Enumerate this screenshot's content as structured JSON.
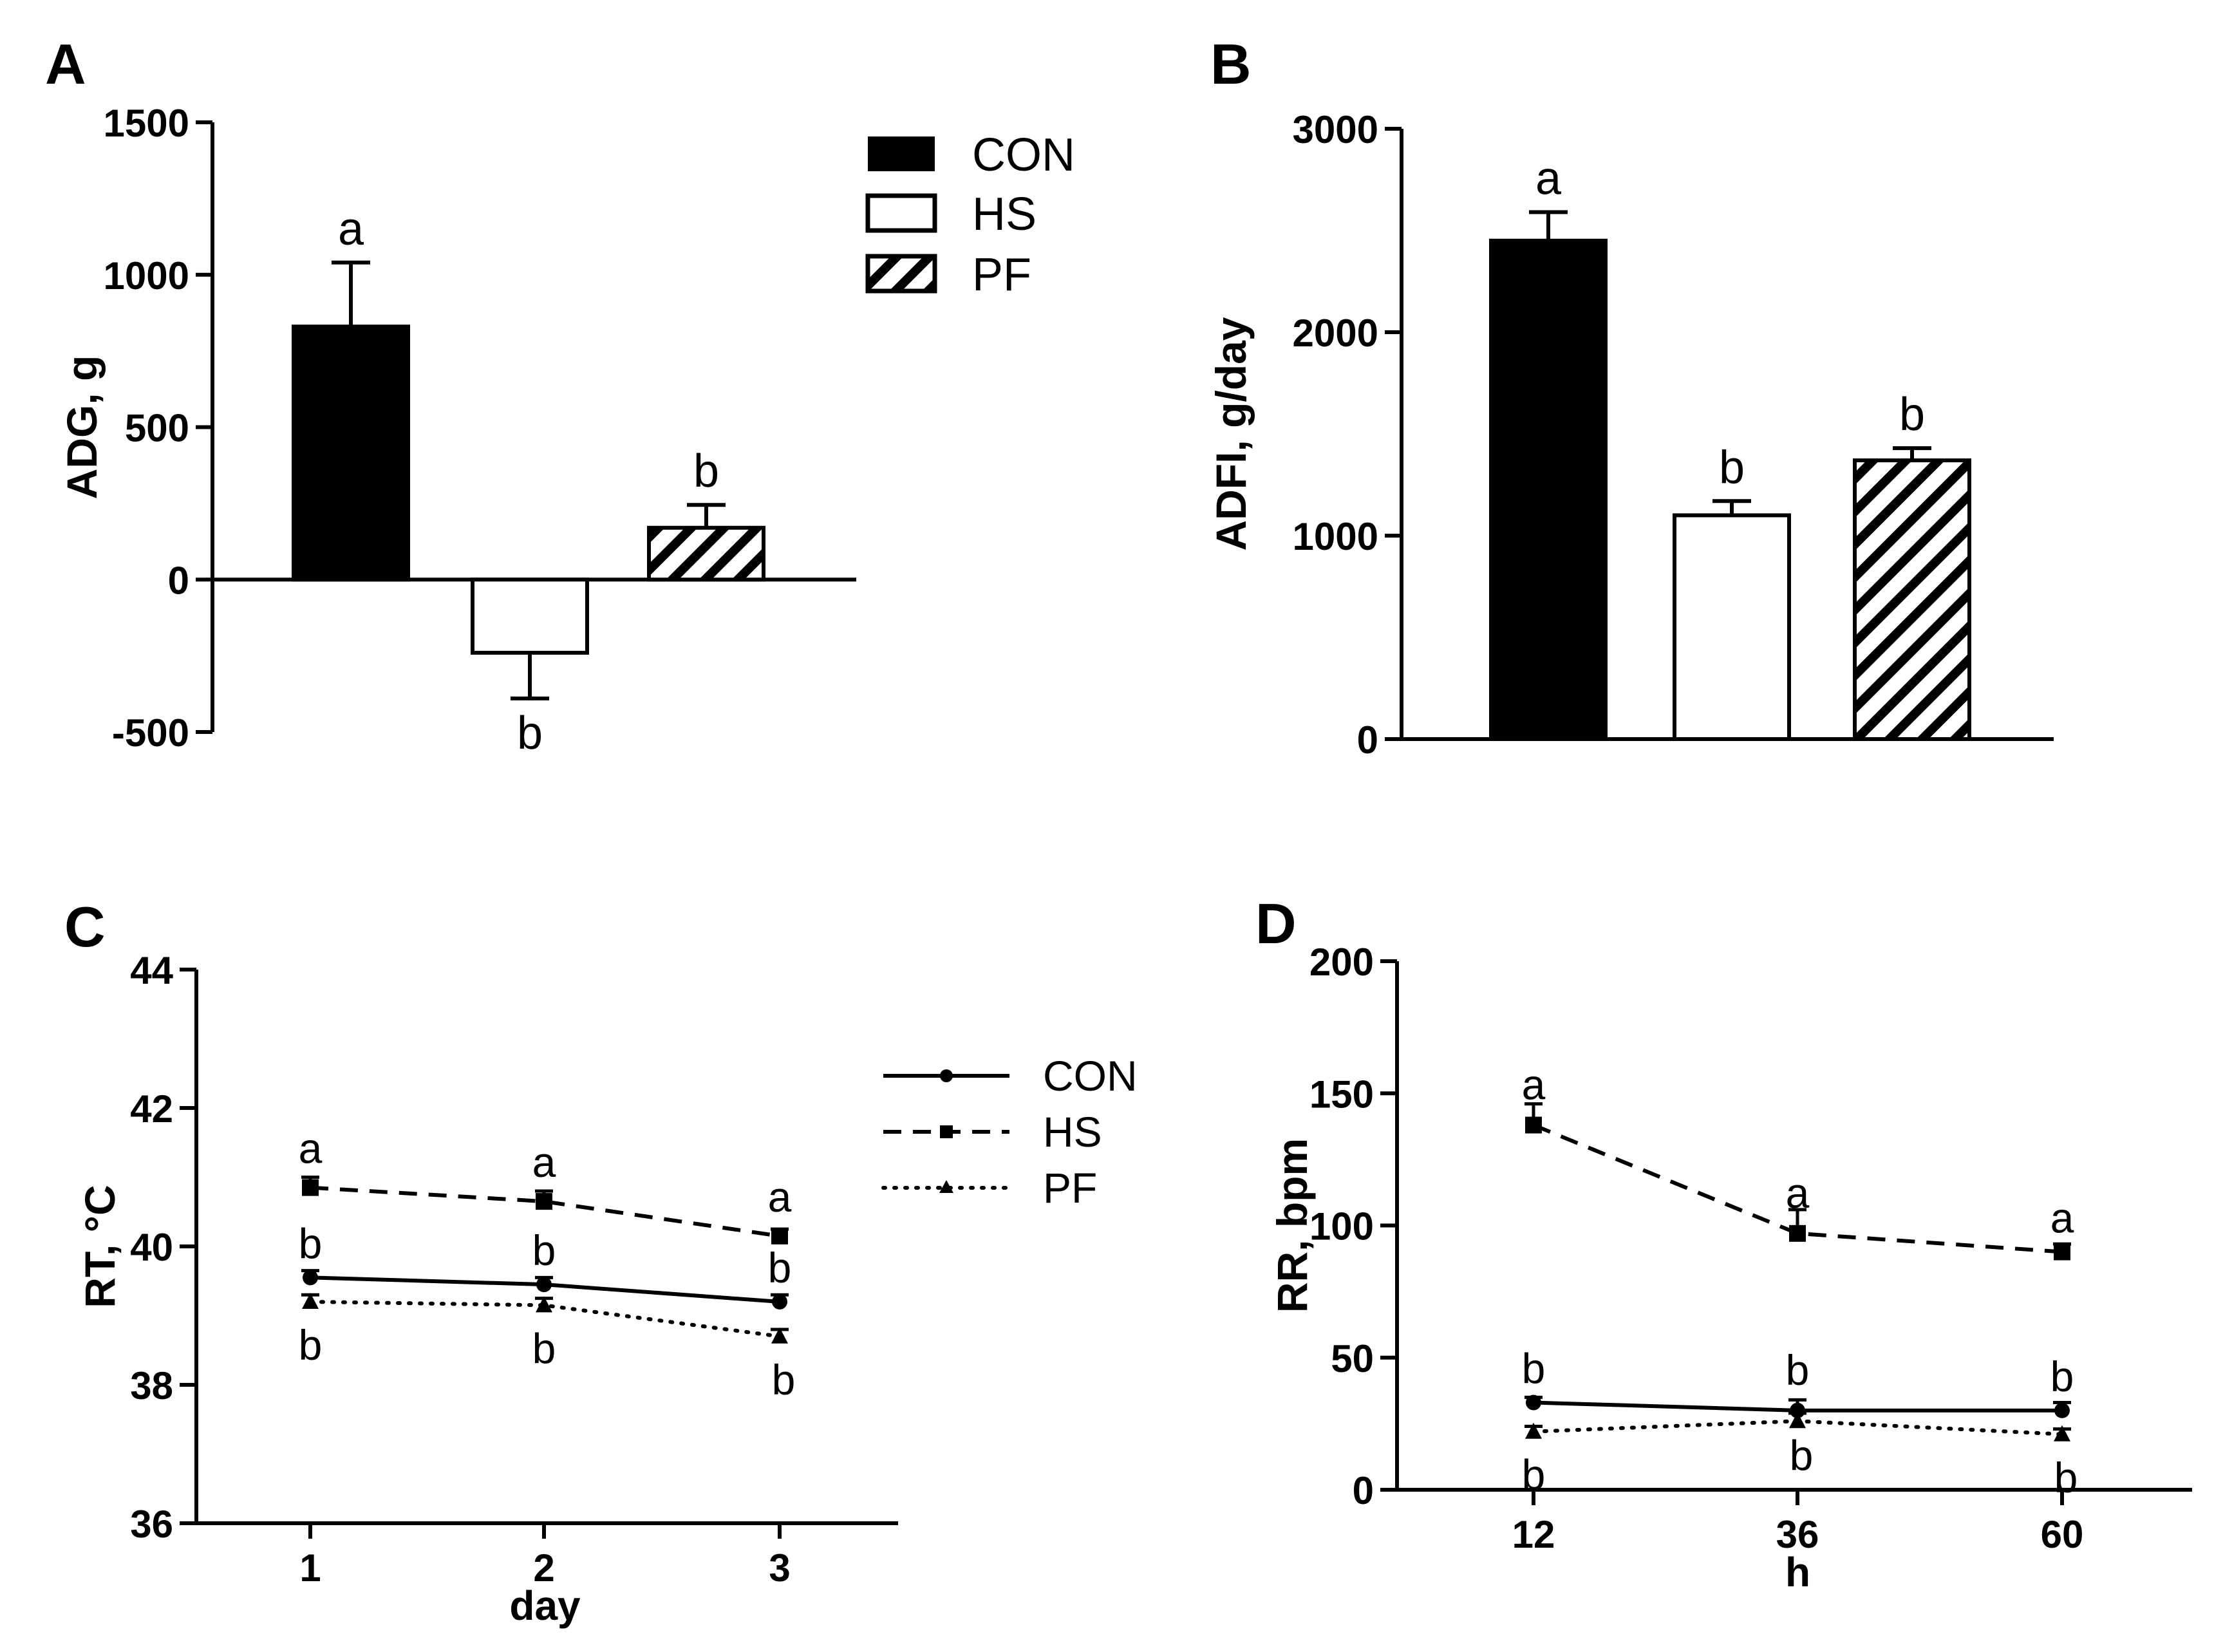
{
  "figure": {
    "panel_labels": [
      "A",
      "B",
      "C",
      "D"
    ],
    "bar_legend": [
      "CON",
      "HS",
      "PF"
    ],
    "line_legend": [
      "CON",
      "HS",
      "PF"
    ]
  },
  "chart_data": [
    {
      "panel": "A",
      "type": "bar",
      "ylabel": "ADG, g",
      "xlabel": "",
      "ylim": [
        -500,
        1500
      ],
      "yticks": [
        "-500",
        "0",
        "500",
        "1000",
        "1500"
      ],
      "categories": [
        "CON",
        "HS",
        "PF"
      ],
      "values": [
        830,
        -240,
        170
      ],
      "errors": [
        210,
        150,
        75
      ],
      "letters": [
        "a",
        "b",
        "b"
      ],
      "legend": "top-right"
    },
    {
      "panel": "B",
      "type": "bar",
      "ylabel": "ADFI, g/day",
      "xlabel": "",
      "ylim": [
        0,
        3000
      ],
      "yticks": [
        "0",
        "1000",
        "2000",
        "3000"
      ],
      "categories": [
        "CON",
        "HS",
        "PF"
      ],
      "values": [
        2450,
        1100,
        1370
      ],
      "errors": [
        140,
        70,
        60
      ],
      "letters": [
        "a",
        "b",
        "b"
      ]
    },
    {
      "panel": "C",
      "type": "line",
      "ylabel": "RT, °C",
      "xlabel": "day",
      "ylim": [
        36,
        44
      ],
      "yticks": [
        "36",
        "38",
        "40",
        "42",
        "44"
      ],
      "x": [
        "1",
        "2",
        "3"
      ],
      "series": [
        {
          "name": "CON",
          "values": [
            39.55,
            39.45,
            39.2
          ],
          "errors": [
            0.1,
            0.1,
            0.1
          ],
          "letters": [
            "b",
            "b",
            "b"
          ]
        },
        {
          "name": "HS",
          "values": [
            40.85,
            40.65,
            40.15
          ],
          "errors": [
            0.15,
            0.15,
            0.1
          ],
          "letters": [
            "a",
            "a",
            "a"
          ]
        },
        {
          "name": "PF",
          "values": [
            39.2,
            39.15,
            38.7
          ],
          "errors": [
            0.1,
            0.1,
            0.1
          ],
          "letters": [
            "b",
            "b",
            "b"
          ]
        }
      ],
      "legend": "right"
    },
    {
      "panel": "D",
      "type": "line",
      "ylabel": "RR, bpm",
      "xlabel": "h",
      "ylim": [
        0,
        200
      ],
      "yticks": [
        "0",
        "50",
        "100",
        "150",
        "200"
      ],
      "x": [
        "12",
        "36",
        "60"
      ],
      "series": [
        {
          "name": "CON",
          "values": [
            33,
            30,
            30
          ],
          "errors": [
            2,
            4,
            3
          ],
          "letters": [
            "b",
            "b",
            "b"
          ]
        },
        {
          "name": "HS",
          "values": [
            138,
            97,
            90
          ],
          "errors": [
            8,
            9,
            3
          ],
          "letters": [
            "a",
            "a",
            "a"
          ]
        },
        {
          "name": "PF",
          "values": [
            22,
            26,
            21
          ],
          "errors": [
            2,
            3,
            2
          ],
          "letters": [
            "b",
            "b",
            "b"
          ]
        }
      ]
    }
  ]
}
